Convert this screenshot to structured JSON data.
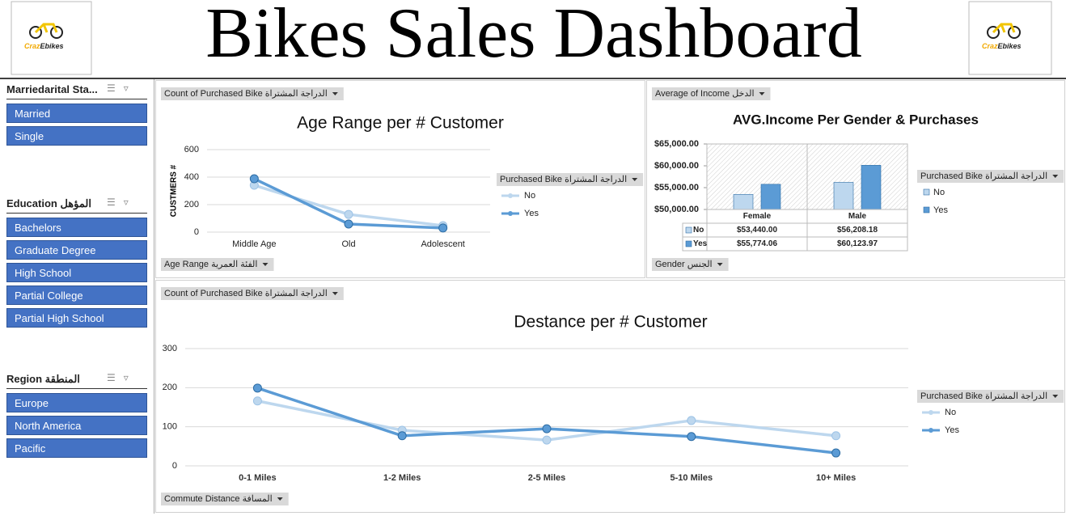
{
  "header": {
    "title": "Bikes Sales Dashboard",
    "logo": {
      "part1": "Craz",
      "part2": "Ebikes"
    }
  },
  "slicers": [
    {
      "title": "Marriedarital Sta...",
      "items": [
        "Married",
        "Single"
      ]
    },
    {
      "title": "Education المؤهل",
      "items": [
        "Bachelors",
        "Graduate Degree",
        "High School",
        "Partial College",
        "Partial High School"
      ]
    },
    {
      "title": "Region المنطقة",
      "items": [
        "Europe",
        "North America",
        "Pacific"
      ]
    }
  ],
  "chart_data": [
    {
      "type": "line",
      "title": "Age Range per # Customer",
      "y_label": "CUSTMERS #",
      "value_field": "Count of Purchased Bike الدراجة المشتراة",
      "axis_field": "Age Range الفئة العمرية",
      "legend_field": "Purchased Bike الدراجة المشتراة",
      "categories": [
        "Middle Age",
        "Old",
        "Adolescent"
      ],
      "series": [
        {
          "name": "No",
          "color": "#bdd7ee",
          "values": [
            341,
            129,
            47
          ]
        },
        {
          "name": "Yes",
          "color": "#5b9bd5",
          "values": [
            388,
            59,
            30
          ]
        }
      ],
      "ylim": [
        0,
        600
      ],
      "yticks": [
        0,
        200,
        400,
        600
      ],
      "grid": true
    },
    {
      "type": "bar",
      "title": "AVG.Income Per Gender & Purchases",
      "value_field": "Average of Income الدخل",
      "axis_field": "Gender الجنس",
      "legend_field": "Purchased Bike الدراجة المشتراة",
      "categories": [
        "Female",
        "Male"
      ],
      "series": [
        {
          "name": "No",
          "color": "#bdd7ee",
          "values": [
            53440,
            56208.18
          ],
          "value_labels": [
            "$53,440.00",
            "$56,208.18"
          ]
        },
        {
          "name": "Yes",
          "color": "#5b9bd5",
          "values": [
            55774.06,
            60123.97
          ],
          "value_labels": [
            "$55,774.06",
            "$60,123.97"
          ]
        }
      ],
      "ylim": [
        50000,
        65000
      ],
      "yticks": [
        {
          "value": 50000,
          "label": "$50,000.00"
        },
        {
          "value": 55000,
          "label": "$55,000.00"
        },
        {
          "value": 60000,
          "label": "$60,000.00"
        },
        {
          "value": 65000,
          "label": "$65,000.00"
        }
      ],
      "grid": false
    },
    {
      "type": "line",
      "title": "Destance per # Customer",
      "value_field": "Count of Purchased Bike الدراجة المشتراة",
      "axis_field": "Commute Distance المسافة",
      "legend_field": "Purchased Bike الدراجة المشتراة",
      "categories": [
        "0-1 Miles",
        "1-2 Miles",
        "2-5 Miles",
        "5-10 Miles",
        "10+ Miles"
      ],
      "series": [
        {
          "name": "No",
          "color": "#bdd7ee",
          "values": [
            166,
            91,
            66,
            116,
            77
          ]
        },
        {
          "name": "Yes",
          "color": "#5b9bd5",
          "values": [
            199,
            77,
            95,
            75,
            33
          ]
        }
      ],
      "ylim": [
        0,
        300
      ],
      "yticks": [
        0,
        100,
        200,
        300
      ],
      "grid": true
    }
  ]
}
